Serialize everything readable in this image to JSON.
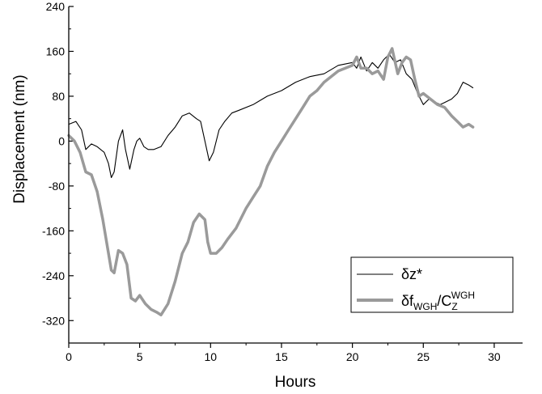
{
  "chart_data": {
    "type": "line",
    "title": "",
    "xlabel": "Hours",
    "ylabel": "Displacement (nm)",
    "xlim": [
      0,
      32
    ],
    "ylim": [
      -360,
      240
    ],
    "x_ticks": [
      0,
      5,
      10,
      15,
      20,
      25,
      30
    ],
    "y_ticks": [
      -320,
      -240,
      -160,
      -80,
      0,
      80,
      160,
      240
    ],
    "grid": false,
    "legend_position": "bottom-right",
    "colors": {
      "series_1": "#000000",
      "series_2": "#9a9a9a"
    },
    "legend": {
      "entry1": {
        "base": "δz*"
      },
      "entry2": {
        "base1": "δf",
        "sub1": "WGH",
        "slash": "/C",
        "sub2": "Z",
        "sup2": "WGH"
      }
    },
    "series": [
      {
        "x": [
          0,
          0.5,
          0.9,
          1.2,
          1.6,
          2.0,
          2.5,
          2.8,
          3.0,
          3.2,
          3.5,
          3.8,
          4.0,
          4.3,
          4.6,
          4.8,
          5.0,
          5.3,
          5.6,
          6.0,
          6.5,
          7.0,
          7.5,
          8.0,
          8.5,
          9.0,
          9.3,
          9.6,
          9.9,
          10.2,
          10.6,
          11.0,
          11.5,
          12.0,
          13.0,
          14.0,
          15.0,
          16.0,
          17.0,
          18.0,
          19.0,
          20.0,
          20.3,
          20.6,
          21.0,
          21.4,
          21.8,
          22.2,
          22.6,
          23.0,
          23.4,
          23.8,
          24.2,
          24.6,
          25.0,
          25.4,
          25.8,
          26.2,
          26.6,
          27.0,
          27.4,
          27.8,
          28.2,
          28.5
        ],
        "values": [
          30,
          35,
          20,
          -15,
          -5,
          -10,
          -20,
          -40,
          -65,
          -55,
          0,
          20,
          -15,
          -50,
          -15,
          0,
          5,
          -10,
          -15,
          -15,
          -10,
          10,
          25,
          45,
          50,
          40,
          35,
          0,
          -35,
          -20,
          20,
          35,
          50,
          55,
          65,
          80,
          90,
          105,
          115,
          120,
          135,
          140,
          130,
          150,
          125,
          140,
          130,
          145,
          155,
          140,
          145,
          120,
          110,
          85,
          65,
          75,
          70,
          65,
          70,
          75,
          85,
          105,
          100,
          95
        ]
      },
      {
        "x": [
          0,
          0.4,
          0.8,
          1.2,
          1.6,
          2.0,
          2.4,
          2.8,
          3.0,
          3.2,
          3.5,
          3.8,
          4.1,
          4.4,
          4.7,
          5.0,
          5.4,
          5.8,
          6.2,
          6.5,
          7.0,
          7.5,
          8.0,
          8.4,
          8.8,
          9.2,
          9.6,
          9.8,
          10.0,
          10.4,
          10.8,
          11.2,
          11.8,
          12.5,
          13.0,
          13.5,
          14.0,
          14.5,
          15.0,
          15.5,
          16.0,
          16.5,
          17.0,
          17.5,
          18.0,
          18.5,
          19.0,
          19.5,
          20.0,
          20.3,
          20.6,
          21.0,
          21.4,
          21.8,
          22.2,
          22.5,
          22.8,
          23.2,
          23.5,
          23.8,
          24.1,
          24.4,
          24.7,
          25.0,
          25.5,
          26.0,
          26.5,
          27.0,
          27.4,
          27.8,
          28.2,
          28.5
        ],
        "values": [
          10,
          0,
          -20,
          -55,
          -60,
          -90,
          -140,
          -200,
          -230,
          -235,
          -195,
          -200,
          -220,
          -280,
          -285,
          -275,
          -290,
          -300,
          -305,
          -310,
          -290,
          -250,
          -200,
          -180,
          -145,
          -130,
          -140,
          -180,
          -200,
          -200,
          -190,
          -175,
          -155,
          -120,
          -100,
          -80,
          -45,
          -20,
          0,
          20,
          40,
          60,
          80,
          90,
          105,
          115,
          125,
          130,
          135,
          150,
          130,
          130,
          120,
          125,
          110,
          150,
          165,
          120,
          140,
          150,
          145,
          110,
          80,
          85,
          75,
          65,
          60,
          45,
          35,
          25,
          30,
          25
        ]
      }
    ]
  }
}
